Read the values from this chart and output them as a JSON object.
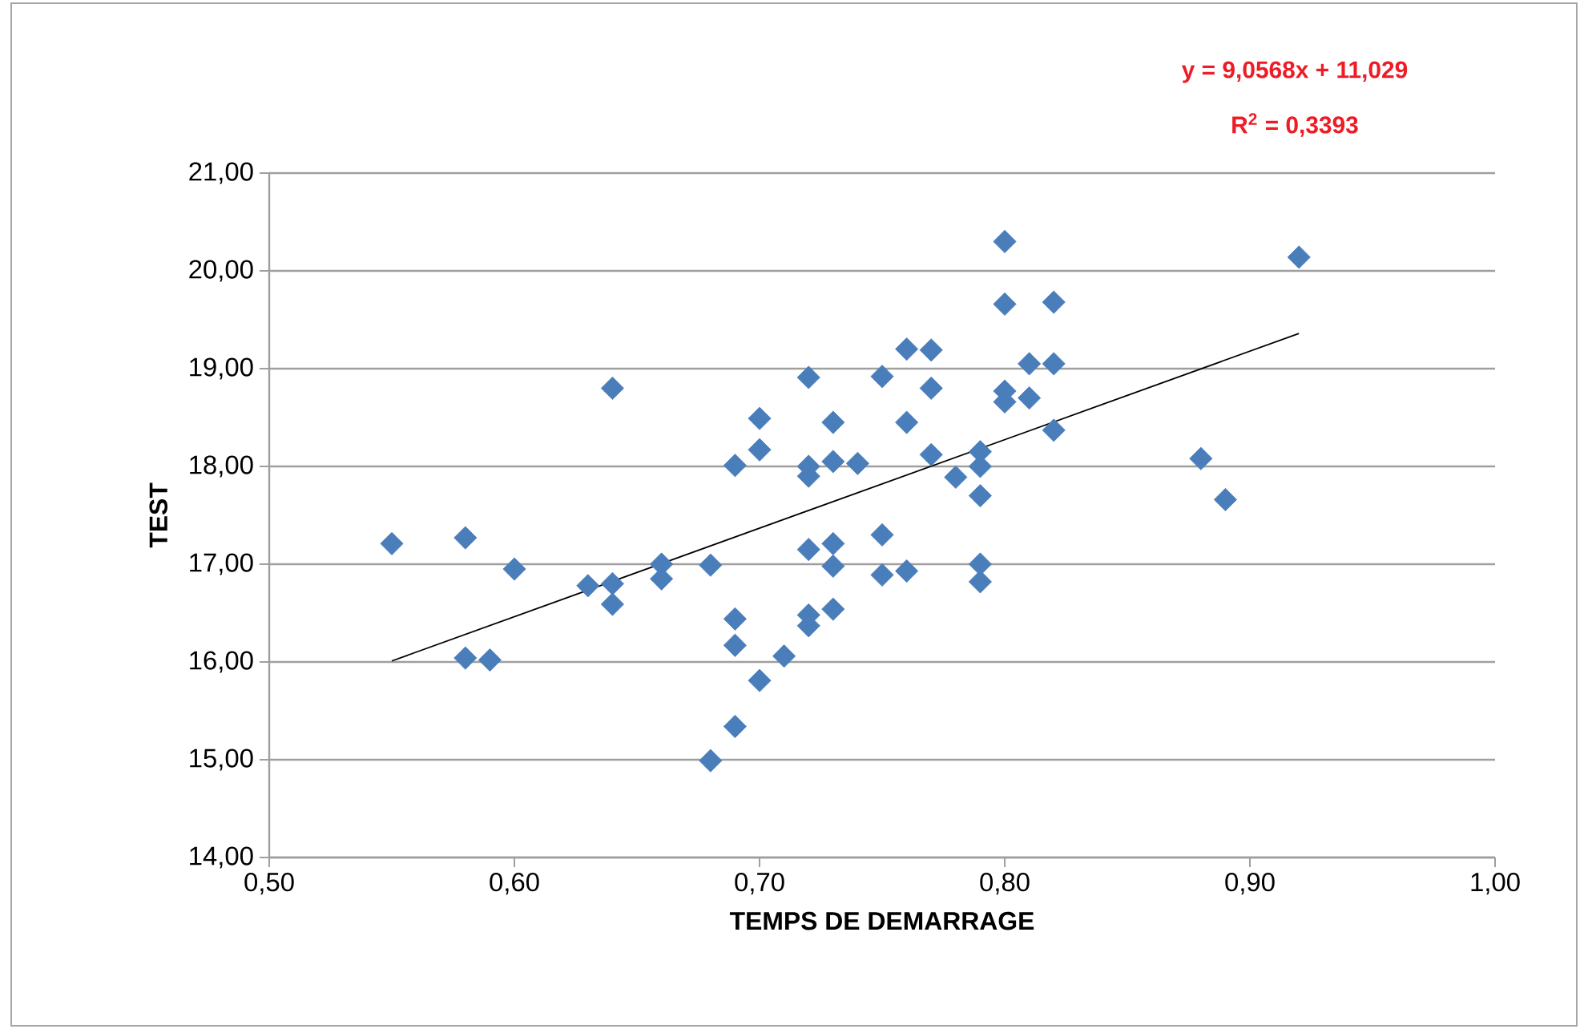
{
  "chart_data": {
    "type": "scatter",
    "xlabel": "TEMPS DE DEMARRAGE",
    "ylabel": "TEST",
    "annotations": [
      "y = 9,0568x + 11,029",
      "R$^{2}$ = 0,3393"
    ],
    "xlim": [
      0.5,
      1.0
    ],
    "ylim": [
      14,
      21
    ],
    "grid": "y",
    "xticks": [
      {
        "value": 0.5,
        "label": "0,50"
      },
      {
        "value": 0.6,
        "label": "0,60"
      },
      {
        "value": 0.7,
        "label": "0,70"
      },
      {
        "value": 0.8,
        "label": "0,80"
      },
      {
        "value": 0.9,
        "label": "0,90"
      },
      {
        "value": 1.0,
        "label": "1,00"
      }
    ],
    "yticks": [
      {
        "value": 14,
        "label": "14,00"
      },
      {
        "value": 15,
        "label": "15,00"
      },
      {
        "value": 16,
        "label": "16,00"
      },
      {
        "value": 17,
        "label": "17,00"
      },
      {
        "value": 18,
        "label": "18,00"
      },
      {
        "value": 19,
        "label": "19,00"
      },
      {
        "value": 20,
        "label": "20,00"
      },
      {
        "value": 21,
        "label": "21,00"
      }
    ],
    "series": [
      {
        "color": "#4a7ebb",
        "marker": "diamond",
        "x": [
          0.55,
          0.58,
          0.58,
          0.59,
          0.6,
          0.63,
          0.64,
          0.64,
          0.64,
          0.66,
          0.66,
          0.68,
          0.68,
          0.69,
          0.69,
          0.69,
          0.69,
          0.7,
          0.7,
          0.7,
          0.71,
          0.72,
          0.72,
          0.72,
          0.72,
          0.72,
          0.72,
          0.73,
          0.73,
          0.73,
          0.73,
          0.73,
          0.74,
          0.75,
          0.75,
          0.75,
          0.76,
          0.76,
          0.76,
          0.77,
          0.77,
          0.77,
          0.78,
          0.79,
          0.79,
          0.79,
          0.79,
          0.79,
          0.8,
          0.8,
          0.8,
          0.8,
          0.81,
          0.81,
          0.82,
          0.82,
          0.82,
          0.88,
          0.89,
          0.92
        ],
        "values": [
          17.21,
          17.27,
          16.04,
          16.02,
          16.95,
          16.78,
          18.8,
          16.8,
          16.59,
          17.0,
          16.85,
          16.99,
          14.99,
          18.01,
          16.44,
          16.17,
          15.34,
          18.49,
          18.17,
          15.81,
          16.06,
          18.91,
          18.0,
          17.9,
          17.15,
          16.48,
          16.37,
          18.45,
          18.05,
          17.21,
          16.98,
          16.54,
          18.03,
          18.92,
          17.3,
          16.89,
          19.2,
          18.45,
          16.93,
          19.19,
          18.8,
          18.12,
          17.89,
          18.15,
          18.0,
          17.7,
          17.0,
          16.82,
          20.3,
          19.66,
          18.77,
          18.66,
          19.05,
          18.7,
          19.68,
          19.05,
          18.37,
          18.08,
          17.66,
          20.14
        ]
      },
      {
        "type": "line",
        "color": "#000000",
        "marker": "none",
        "x": [
          0.55,
          0.92
        ],
        "values": [
          16.01,
          19.36
        ]
      }
    ]
  }
}
